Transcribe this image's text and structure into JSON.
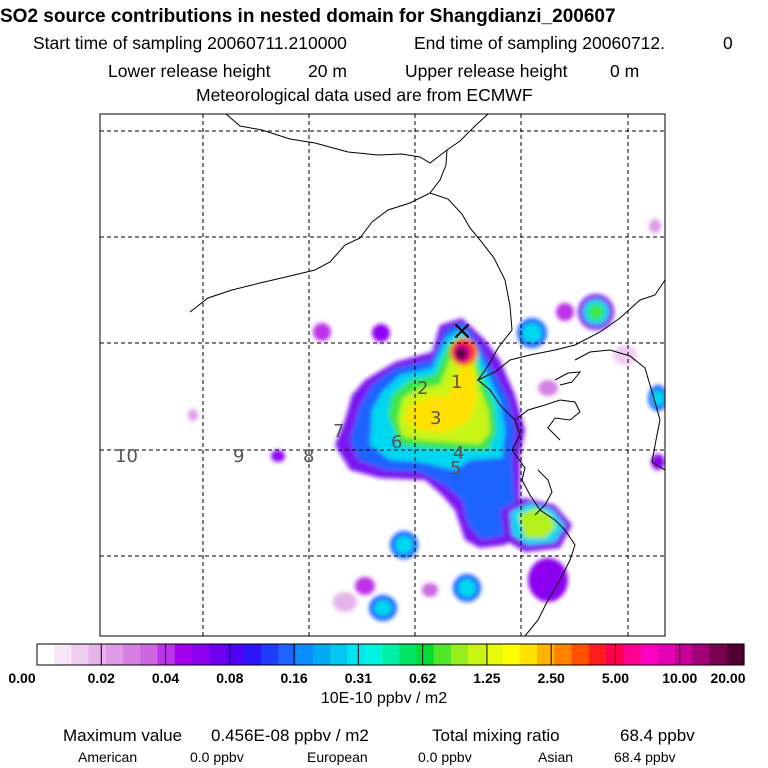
{
  "header": {
    "title": "SO2 source contributions in nested domain for Shangdianzi_200607",
    "start_label": "Start time of sampling 20060711.210000",
    "end_label": "End time of sampling 20060712.",
    "end_value": "0",
    "lower_label": "Lower release height",
    "lower_value": "20 m",
    "upper_label": "Upper release height",
    "upper_value": "0 m",
    "met_label": "Meteorological data used are from ECMWF"
  },
  "colorbar": {
    "colors": [
      "#ffffff",
      "#f7e6f7",
      "#efcdef",
      "#e6b3ea",
      "#de9ae6",
      "#d57fe2",
      "#cc66e0",
      "#bb33e8",
      "#a500ee",
      "#8c00f0",
      "#6e00f2",
      "#5000f5",
      "#2d14fa",
      "#1e3cff",
      "#1e64ff",
      "#0a8cff",
      "#00aaf5",
      "#00c8f0",
      "#00e6f0",
      "#00f5e1",
      "#00f0aa",
      "#00e664",
      "#00dc32",
      "#50e628",
      "#96ee1e",
      "#c8f514",
      "#e6fa0a",
      "#ffff00",
      "#ffe100",
      "#ffb400",
      "#ff8200",
      "#ff5000",
      "#ff1e1e",
      "#ff0050",
      "#ff0090",
      "#ff00c0",
      "#e600b4",
      "#c80096",
      "#a00078",
      "#7a0050",
      "#500032"
    ],
    "tick_labels": [
      "0.00",
      "0.02",
      "0.04",
      "0.08",
      "0.16",
      "0.31",
      "0.62",
      "1.25",
      "2.50",
      "5.00",
      "10.00",
      "20.00"
    ],
    "unit_label": "10E-10 ppbv / m2"
  },
  "map": {
    "track_labels": [
      "1",
      "2",
      "3",
      "4",
      "5",
      "6",
      "7",
      "8",
      "9",
      "10"
    ],
    "station_marker": "×"
  },
  "footer": {
    "max_label": "Maximum value",
    "max_value": "0.456E-08 ppbv / m2",
    "total_label": "Total mixing ratio",
    "total_value": "68.4 ppbv",
    "american_label": "American",
    "american_value": "0.0 ppbv",
    "european_label": "European",
    "european_value": "0.0 ppbv",
    "asian_label": "Asian",
    "asian_value": "68.4 ppbv"
  },
  "chart_data": {
    "type": "heatmap",
    "title": "SO2 source contributions in nested domain for Shangdianzi_200607",
    "colorbar_ticks": [
      0.0,
      0.02,
      0.04,
      0.08,
      0.16,
      0.31,
      0.62,
      1.25,
      2.5,
      5.0,
      10.0,
      20.0
    ],
    "unit": "10E-10 ppbv / m2",
    "peak_value": "0.456E-08 ppbv / m2",
    "total_mixing_ratio_ppbv": 68.4,
    "regional_contributions_ppbv": {
      "American": 0.0,
      "European": 0.0,
      "Asian": 68.4
    }
  }
}
